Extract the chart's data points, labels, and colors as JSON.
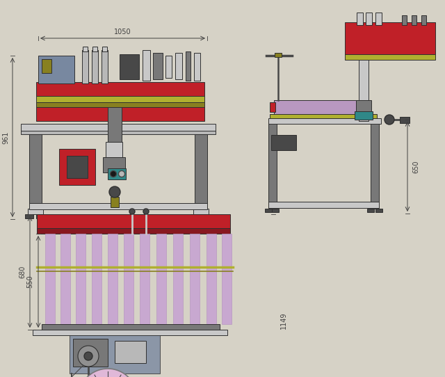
{
  "bg_color": "#d6d2c6",
  "dim_color": "#404040",
  "colors": {
    "red": "#c02028",
    "dark_red": "#881820",
    "gray": "#787878",
    "light_gray": "#b8b8b8",
    "silver": "#c8c8c8",
    "olive": "#888020",
    "yellow_green": "#b0b030",
    "purple": "#b898c0",
    "blue_gray": "#7888a0",
    "dark_gray": "#484848",
    "teal": "#308888",
    "black": "#181818",
    "pink_light": "#e0b8d8",
    "light_purple": "#c8a8d0",
    "med_gray": "#909090"
  }
}
